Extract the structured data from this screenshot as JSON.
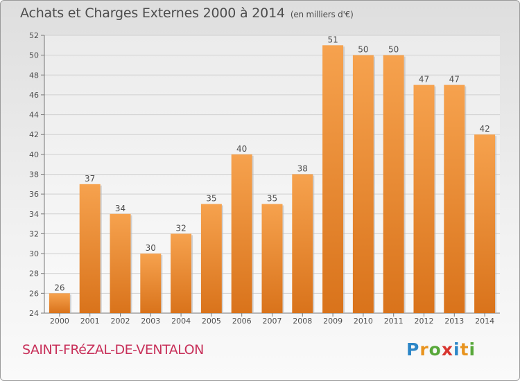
{
  "title": "Achats et Charges Externes 2000 à 2014",
  "subtitle": "(en milliers d'€)",
  "location": "SAINT-FRéZAL-DE-VENTALON",
  "logo": {
    "text": "Proxiti",
    "letters": [
      {
        "ch": "P",
        "color": "#2c86c7"
      },
      {
        "ch": "r",
        "color": "#e8931e"
      },
      {
        "ch": "o",
        "color": "#58a83a"
      },
      {
        "ch": "x",
        "color": "#d8352f"
      },
      {
        "ch": "i",
        "color": "#2c86c7"
      },
      {
        "ch": "t",
        "color": "#e8931e"
      },
      {
        "ch": "i",
        "color": "#58a83a"
      }
    ]
  },
  "colors": {
    "bar_light": "#f6a24e",
    "bar_dark": "#d9731b",
    "location": "#c8315a",
    "text": "#4d4d4d"
  },
  "chart_data": {
    "type": "bar",
    "title": "Achats et Charges Externes 2000 à 2014",
    "subtitle": "(en milliers d'€)",
    "categories": [
      "2000",
      "2001",
      "2002",
      "2003",
      "2004",
      "2005",
      "2006",
      "2007",
      "2008",
      "2009",
      "2010",
      "2011",
      "2012",
      "2013",
      "2014"
    ],
    "values": [
      26,
      37,
      34,
      30,
      32,
      35,
      40,
      35,
      38,
      51,
      50,
      50,
      47,
      47,
      42
    ],
    "ylim": [
      24,
      52
    ],
    "yticks": [
      24,
      26,
      28,
      30,
      32,
      34,
      36,
      38,
      40,
      42,
      44,
      46,
      48,
      50,
      52
    ],
    "grid": true,
    "data_labels": true
  }
}
